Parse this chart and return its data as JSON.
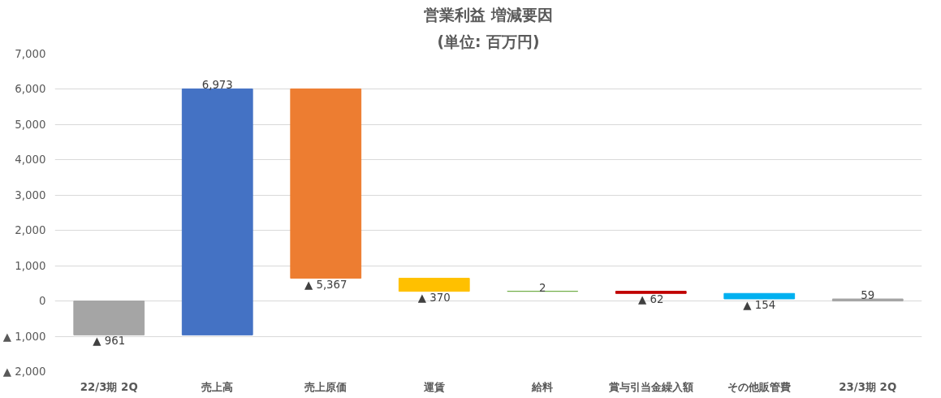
{
  "chart_data": {
    "type": "bar",
    "title": "営業利益 増減要因",
    "subtitle": "(単位: 百万円)",
    "categories": [
      "22/3期 2Q",
      "売上高",
      "売上原価",
      "運賃",
      "給料",
      "賞与引当金繰入額",
      "その他販管費",
      "23/3期 2Q"
    ],
    "values": [
      -961,
      6973,
      -5367,
      -370,
      2,
      -62,
      -154,
      59
    ],
    "base": [
      0,
      -961,
      6012,
      645,
      275,
      277,
      215,
      0
    ],
    "colors": [
      "#a5a5a5",
      "#4472c4",
      "#ed7d31",
      "#ffc000",
      "#70ad47",
      "#c00000",
      "#00b0f0",
      "#a5a5a5"
    ],
    "value_labels": [
      "▲ 961",
      "6,973",
      "▲ 5,367",
      "▲ 370",
      "2",
      "▲ 62",
      "▲ 154",
      "59"
    ],
    "ylim": [
      -2000,
      7000
    ],
    "yticks": [
      {
        "value": -2000,
        "label": "▲ 2,000"
      },
      {
        "value": -1000,
        "label": "▲ 1,000"
      },
      0,
      {
        "value": 1000,
        "label": "1,000"
      },
      {
        "value": 2000,
        "label": "2,000"
      },
      {
        "value": 3000,
        "label": "3,000"
      },
      {
        "value": 4000,
        "label": "4,000"
      },
      {
        "value": 5000,
        "label": "5,000"
      },
      {
        "value": 6000,
        "label": "6,000"
      },
      {
        "value": 7000,
        "label": "7,000"
      }
    ],
    "grid": "y"
  }
}
